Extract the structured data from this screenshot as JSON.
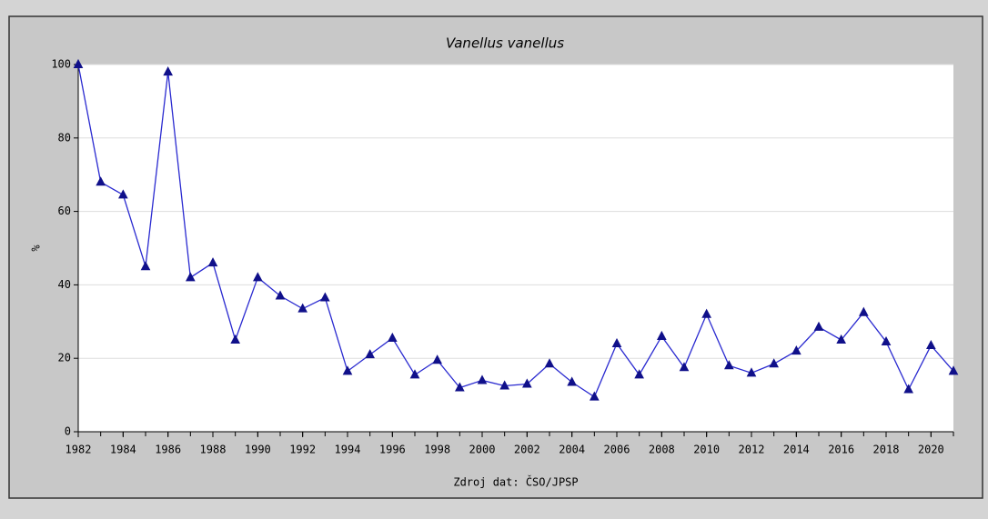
{
  "chart_data": {
    "type": "line",
    "title": "Vanellus vanellus",
    "ylabel": "%",
    "source": "Zdroj dat: ČSO/JPSP",
    "x": [
      1982,
      1983,
      1984,
      1985,
      1986,
      1987,
      1988,
      1989,
      1990,
      1991,
      1992,
      1993,
      1994,
      1995,
      1996,
      1997,
      1998,
      1999,
      2000,
      2001,
      2002,
      2003,
      2004,
      2005,
      2006,
      2007,
      2008,
      2009,
      2010,
      2011,
      2012,
      2013,
      2014,
      2015,
      2016,
      2017,
      2018,
      2019,
      2020,
      2021
    ],
    "series": [
      {
        "name": "Vanellus vanellus",
        "color": "#2a2ad0",
        "marker_color": "#10108a",
        "values": [
          100,
          68,
          64.5,
          45,
          98,
          42,
          46,
          25,
          42,
          37,
          33.5,
          36.5,
          16.5,
          21,
          25.5,
          15.5,
          19.5,
          12,
          14,
          12.5,
          13,
          18.5,
          13.5,
          9.5,
          24,
          15.5,
          26,
          17.5,
          32,
          18,
          16,
          18.5,
          22,
          28.5,
          25,
          32.5,
          24.5,
          11.5,
          23.5,
          16.5
        ]
      }
    ],
    "xlim": [
      1982,
      2021
    ],
    "xticks": [
      1982,
      1984,
      1986,
      1988,
      1990,
      1992,
      1994,
      1996,
      1998,
      2000,
      2002,
      2004,
      2006,
      2008,
      2010,
      2012,
      2014,
      2016,
      2018,
      2020
    ],
    "ylim": [
      0,
      100
    ],
    "yticks": [
      0,
      20,
      40,
      60,
      80,
      100
    ],
    "grid": true
  }
}
